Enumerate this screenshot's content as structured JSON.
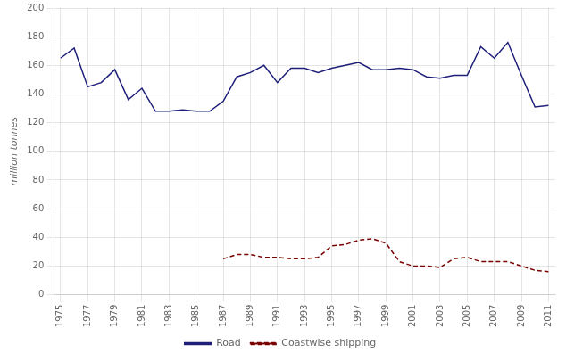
{
  "chart_data": {
    "type": "line",
    "y_label": "million tonnes",
    "x": [
      1975,
      1976,
      1977,
      1978,
      1979,
      1980,
      1981,
      1982,
      1983,
      1984,
      1985,
      1986,
      1987,
      1988,
      1989,
      1990,
      1991,
      1992,
      1993,
      1994,
      1995,
      1996,
      1997,
      1998,
      1999,
      2000,
      2001,
      2002,
      2003,
      2004,
      2005,
      2006,
      2007,
      2008,
      2009,
      2010,
      2011
    ],
    "series": [
      {
        "name": "Road",
        "color": "#1f1f7a",
        "line_style": "solid",
        "values": [
          165,
          172,
          145,
          148,
          157,
          136,
          144,
          128,
          128,
          129,
          128,
          128,
          135,
          152,
          155,
          160,
          148,
          158,
          158,
          155,
          158,
          160,
          162,
          157,
          157,
          158,
          157,
          152,
          151,
          153,
          153,
          173,
          165,
          176,
          153,
          131,
          132
        ]
      },
      {
        "name": "Coastwise shipping",
        "color": "#7a0000",
        "line_style": "dashed",
        "values": [
          null,
          null,
          null,
          null,
          null,
          null,
          null,
          null,
          null,
          null,
          null,
          null,
          25,
          28,
          28,
          26,
          26,
          25,
          25,
          26,
          34,
          35,
          38,
          39,
          36,
          23,
          20,
          20,
          19,
          25,
          26,
          23,
          23,
          23,
          20,
          17,
          16
        ]
      }
    ],
    "xlim": [
      1974.5,
      2011.5
    ],
    "xticks": [
      1975,
      1977,
      1979,
      1981,
      1983,
      1985,
      1987,
      1989,
      1991,
      1993,
      1995,
      1997,
      1999,
      2001,
      2003,
      2005,
      2007,
      2009,
      2011
    ],
    "ylim": [
      0,
      200
    ],
    "yticks": [
      0,
      20,
      40,
      60,
      80,
      100,
      120,
      140,
      160,
      180,
      200
    ],
    "grid": true,
    "legend": "bottom"
  }
}
